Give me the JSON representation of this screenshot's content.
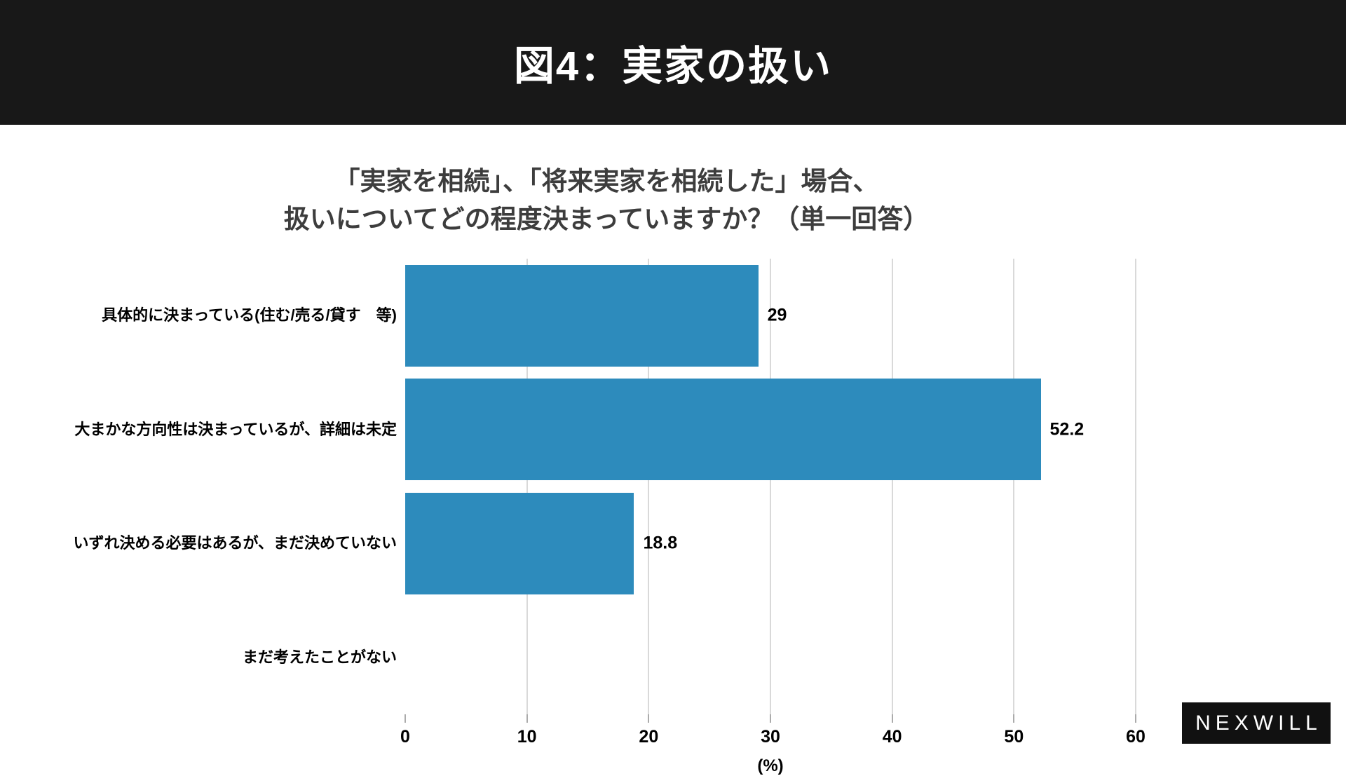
{
  "header": {
    "title": "図4：実家の扱い"
  },
  "chart_data": {
    "type": "bar",
    "orientation": "horizontal",
    "title_lines": [
      "「実家を相続」、「将来実家を相続した」場合、",
      "扱いについてどの程度決まっていますか？（単一回答）"
    ],
    "categories": [
      "具体的に決まっている(住む/売る/貸す　等)",
      "大まかな方向性は決まっているが、詳細は未定",
      "いずれ決める必要はあるが、まだ決めていない",
      "まだ考えたことがない"
    ],
    "values": [
      29,
      52.2,
      18.8,
      0
    ],
    "value_labels": [
      "29",
      "52.2",
      "18.8",
      ""
    ],
    "xlabel": "(%)",
    "xlim": [
      0,
      60
    ],
    "xticks": [
      0,
      10,
      20,
      30,
      40,
      50,
      60
    ],
    "grid": true,
    "legend": false,
    "bar_color": "#2D8BBC"
  },
  "logo": {
    "text": "NEXWILL"
  },
  "colors": {
    "header_bg": "#181818",
    "header_fg": "#ffffff",
    "subtitle_fg": "#3d3d3d",
    "grid": "#d9d9d9",
    "tick": "#ababab",
    "label_fg": "#000000"
  }
}
